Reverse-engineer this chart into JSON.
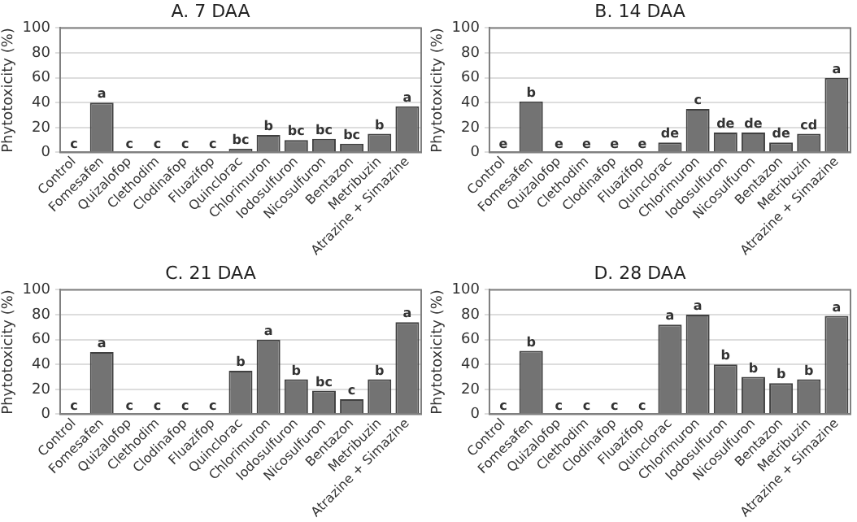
{
  "chart_data": [
    {
      "type": "bar",
      "title": "A. 7 DAA",
      "ylabel": "Phytotoxicity (%)",
      "categories": [
        "Control",
        "Fomesafen",
        "Quizalofop",
        "Clethodim",
        "Clodinafop",
        "Fluazifop",
        "Quinclorac",
        "Chlorimuron",
        "Iodosulfuron",
        "Nicosulfuron",
        "Bentazon",
        "Metribuzin",
        "Atrazine + Simazine"
      ],
      "color": "#737373",
      "values": [
        0,
        40,
        0,
        0,
        0,
        0,
        3,
        14,
        10,
        11,
        7,
        15,
        37
      ],
      "value_labels": [
        "c",
        "a",
        "c",
        "c",
        "c",
        "c",
        "bc",
        "b",
        "bc",
        "bc",
        "bc",
        "b",
        "a"
      ],
      "ylim": [
        0,
        100
      ],
      "yticks": [
        0,
        20,
        40,
        60,
        80,
        100
      ],
      "grid": "y"
    },
    {
      "type": "bar",
      "title": "B. 14 DAA",
      "ylabel": "Phytotoxicity (%)",
      "categories": [
        "Control",
        "Fomesafen",
        "Quizalofop",
        "Clethodim",
        "Clodinafop",
        "Fluazifop",
        "Quinclorac",
        "Chlorimuron",
        "Iodosulfuron",
        "Nicosulfuron",
        "Bentazon",
        "Metribuzin",
        "Atrazine + Simazine"
      ],
      "color": "#737373",
      "values": [
        0,
        41,
        0,
        0,
        0,
        0,
        8,
        35,
        16,
        16,
        8,
        15,
        60
      ],
      "value_labels": [
        "e",
        "b",
        "e",
        "e",
        "e",
        "e",
        "de",
        "c",
        "de",
        "de",
        "de",
        "cd",
        "a"
      ],
      "ylim": [
        0,
        100
      ],
      "yticks": [
        0,
        20,
        40,
        60,
        80,
        100
      ],
      "grid": "y"
    },
    {
      "type": "bar",
      "title": "C. 21 DAA",
      "ylabel": "Phytotoxicity (%)",
      "categories": [
        "Control",
        "Fomesafen",
        "Quizalofop",
        "Clethodim",
        "Clodinafop",
        "Fluazifop",
        "Quinclorac",
        "Chlorimuron",
        "Iodosulfuron",
        "Nicosulfuron",
        "Bentazon",
        "Metribuzin",
        "Atrazine + Simazine"
      ],
      "color": "#737373",
      "values": [
        0,
        50,
        0,
        0,
        0,
        0,
        35,
        60,
        28,
        19,
        12,
        28,
        74
      ],
      "value_labels": [
        "c",
        "a",
        "c",
        "c",
        "c",
        "c",
        "b",
        "a",
        "b",
        "bc",
        "c",
        "b",
        "a"
      ],
      "ylim": [
        0,
        100
      ],
      "yticks": [
        0,
        20,
        40,
        60,
        80,
        100
      ],
      "grid": "y"
    },
    {
      "type": "bar",
      "title": "D. 28 DAA",
      "ylabel": "Phytotoxicity (%)",
      "categories": [
        "Control",
        "Fomesafen",
        "Quizalofop",
        "Clethodim",
        "Clodinafop",
        "Fluazifop",
        "Quinclorac",
        "Chlorimuron",
        "Iodosulfuron",
        "Nicosulfuron",
        "Bentazon",
        "Metribuzin",
        "Atrazine + Simazine"
      ],
      "color": "#737373",
      "values": [
        0,
        51,
        0,
        0,
        0,
        0,
        72,
        80,
        40,
        30,
        25,
        28,
        79
      ],
      "value_labels": [
        "c",
        "b",
        "c",
        "c",
        "c",
        "c",
        "a",
        "a",
        "b",
        "b",
        "b",
        "b",
        "a"
      ],
      "ylim": [
        0,
        100
      ],
      "yticks": [
        0,
        20,
        40,
        60,
        80,
        100
      ],
      "grid": "y"
    }
  ]
}
